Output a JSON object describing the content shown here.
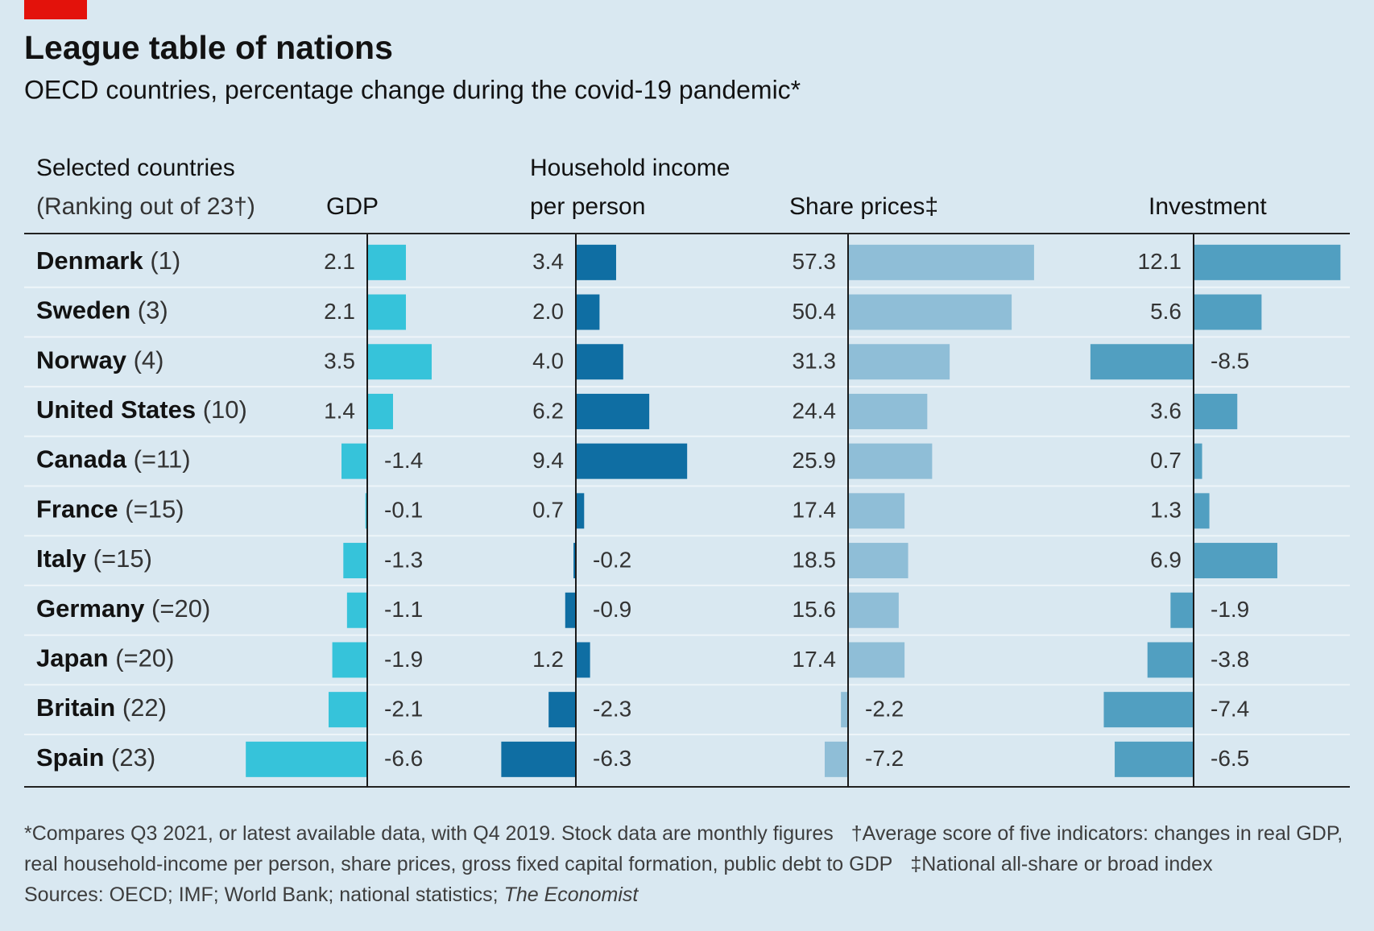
{
  "chart_data": {
    "type": "bar-table",
    "title": "League table of nations",
    "subtitle": "OECD countries, percentage change during the covid-19 pandemic*",
    "row_header": [
      "Selected countries",
      "(Ranking out of 23†)"
    ],
    "categories": [
      "Denmark",
      "Sweden",
      "Norway",
      "United States",
      "Canada",
      "France",
      "Italy",
      "Germany",
      "Japan",
      "Britain",
      "Spain"
    ],
    "ranks": [
      "(1)",
      "(3)",
      "(4)",
      "(10)",
      "(=11)",
      "(=15)",
      "(=15)",
      "(=20)",
      "(=20)",
      "(22)",
      "(23)"
    ],
    "columns": [
      {
        "name": [
          "GDP"
        ],
        "color": "#36c3da",
        "values": [
          2.1,
          2.1,
          3.5,
          1.4,
          -1.4,
          -0.1,
          -1.3,
          -1.1,
          -1.9,
          -2.1,
          -6.6
        ]
      },
      {
        "name": [
          "Household income",
          "per person"
        ],
        "color": "#0f6ea3",
        "values": [
          3.4,
          2.0,
          4.0,
          6.2,
          9.4,
          0.7,
          -0.2,
          -0.9,
          1.2,
          -2.3,
          -6.3
        ],
        "value_labels": [
          "3.4",
          "2.0",
          "4.0",
          "6.2",
          "9.4",
          "0.7",
          "-0.2",
          "-0.9",
          "1.2",
          "-2.3",
          "-6.3"
        ]
      },
      {
        "name": [
          "Share prices‡"
        ],
        "color": "#8fbed7",
        "values": [
          57.3,
          50.4,
          31.3,
          24.4,
          25.9,
          17.4,
          18.5,
          15.6,
          17.4,
          -2.2,
          -7.2
        ]
      },
      {
        "name": [
          "Investment"
        ],
        "color": "#519fc1",
        "values": [
          12.1,
          5.6,
          -8.5,
          3.6,
          0.7,
          1.3,
          6.9,
          -1.9,
          -3.8,
          -7.4,
          -6.5
        ]
      }
    ],
    "footnotes": [
      "*Compares Q3 2021, or latest available data, with Q4 2019. Stock data are monthly figures",
      "†Average score of five indicators: changes in real GDP, real household-income per person, share prices, gross fixed capital formation, public debt to GDP",
      "‡National all-share or broad index"
    ],
    "sources": [
      "Sources: OECD; IMF; World Bank; national statistics;",
      "The Economist"
    ]
  }
}
